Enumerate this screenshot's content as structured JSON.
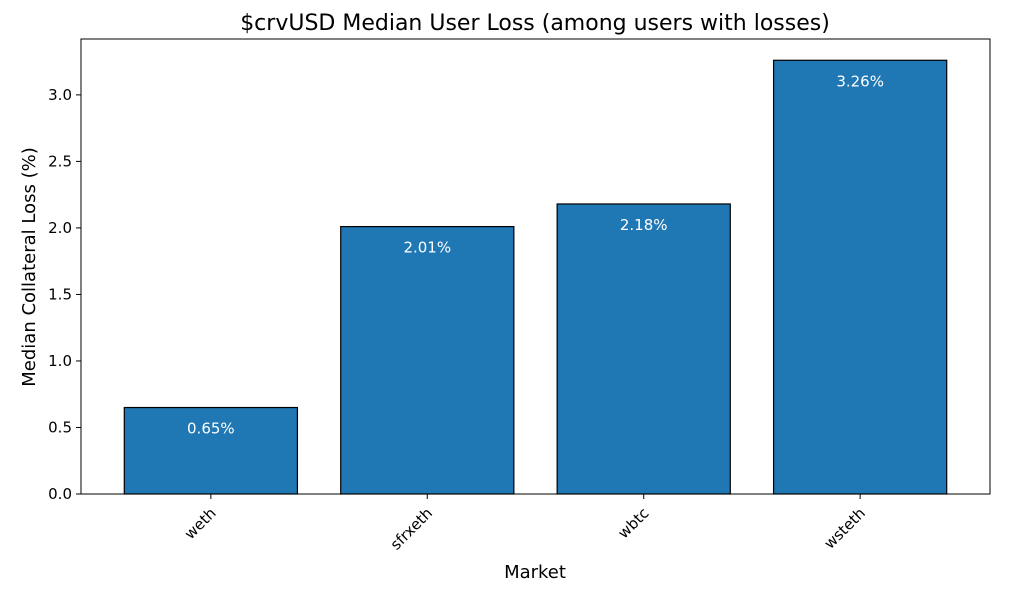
{
  "chart_data": {
    "type": "bar",
    "title": "$crvUSD Median User Loss (among users with losses)",
    "xlabel": "Market",
    "ylabel": "Median Collateral Loss (%)",
    "categories": [
      "weth",
      "sfrxeth",
      "wbtc",
      "wsteth"
    ],
    "values": [
      0.65,
      2.01,
      2.18,
      3.26
    ],
    "data_labels": [
      "0.65%",
      "2.01%",
      "2.18%",
      "3.26%"
    ],
    "ylim": [
      0,
      3.42
    ],
    "yticks": [
      0.0,
      0.5,
      1.0,
      1.5,
      2.0,
      2.5,
      3.0
    ],
    "ytick_labels": [
      "0.0",
      "0.5",
      "1.0",
      "1.5",
      "2.0",
      "2.5",
      "3.0"
    ],
    "grid": false,
    "bar_color": "#1f77b4",
    "bar_edge_color": "#000000"
  }
}
